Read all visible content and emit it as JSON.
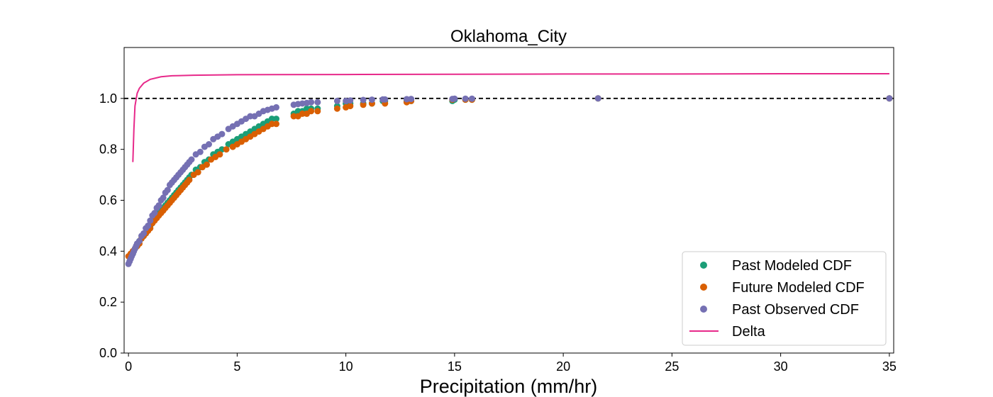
{
  "chart_data": {
    "type": "scatter",
    "title": "Oklahoma_City",
    "xlabel": "Precipitation (mm/hr)",
    "ylabel": "",
    "xlim": [
      -0.2,
      35.2
    ],
    "ylim": [
      0.0,
      1.2
    ],
    "x_ticks": [
      "0",
      "5",
      "10",
      "15",
      "20",
      "25",
      "30",
      "35"
    ],
    "y_ticks": [
      "0.0",
      "0.2",
      "0.4",
      "0.6",
      "0.8",
      "1.0"
    ],
    "grid": false,
    "legend_position": "lower-right",
    "reference_line": {
      "y": 1.0,
      "style": "dashed",
      "color": "#000000"
    },
    "series": [
      {
        "name": "Past Modeled CDF",
        "kind": "scatter",
        "color": "#1b9e77",
        "points": [
          [
            0.1,
            0.38
          ],
          [
            0.2,
            0.39
          ],
          [
            0.3,
            0.41
          ],
          [
            0.4,
            0.42
          ],
          [
            0.5,
            0.44
          ],
          [
            0.6,
            0.45
          ],
          [
            0.7,
            0.46
          ],
          [
            0.8,
            0.47
          ],
          [
            0.9,
            0.49
          ],
          [
            1.0,
            0.5
          ],
          [
            1.1,
            0.51
          ],
          [
            1.2,
            0.53
          ],
          [
            1.3,
            0.54
          ],
          [
            1.4,
            0.55
          ],
          [
            1.5,
            0.56
          ],
          [
            1.6,
            0.57
          ],
          [
            1.7,
            0.58
          ],
          [
            1.8,
            0.59
          ],
          [
            1.9,
            0.6
          ],
          [
            2.0,
            0.61
          ],
          [
            2.1,
            0.62
          ],
          [
            2.2,
            0.63
          ],
          [
            2.3,
            0.64
          ],
          [
            2.4,
            0.65
          ],
          [
            2.5,
            0.66
          ],
          [
            2.6,
            0.67
          ],
          [
            2.7,
            0.68
          ],
          [
            2.8,
            0.69
          ],
          [
            2.9,
            0.7
          ],
          [
            3.1,
            0.72
          ],
          [
            3.3,
            0.73
          ],
          [
            3.5,
            0.75
          ],
          [
            3.7,
            0.76
          ],
          [
            3.9,
            0.78
          ],
          [
            4.1,
            0.79
          ],
          [
            4.3,
            0.8
          ],
          [
            4.6,
            0.82
          ],
          [
            4.8,
            0.83
          ],
          [
            5.0,
            0.84
          ],
          [
            5.2,
            0.85
          ],
          [
            5.4,
            0.86
          ],
          [
            5.6,
            0.87
          ],
          [
            5.8,
            0.88
          ],
          [
            6.0,
            0.89
          ],
          [
            6.2,
            0.9
          ],
          [
            6.4,
            0.91
          ],
          [
            6.6,
            0.92
          ],
          [
            6.8,
            0.92
          ],
          [
            7.6,
            0.94
          ],
          [
            7.8,
            0.95
          ],
          [
            8.0,
            0.95
          ],
          [
            8.2,
            0.96
          ],
          [
            8.4,
            0.96
          ],
          [
            8.7,
            0.96
          ],
          [
            9.6,
            0.97
          ],
          [
            10.0,
            0.98
          ],
          [
            10.2,
            0.98
          ],
          [
            10.8,
            0.98
          ],
          [
            11.2,
            0.98
          ],
          [
            11.7,
            0.99
          ],
          [
            11.8,
            0.99
          ],
          [
            12.8,
            0.99
          ],
          [
            13.0,
            0.99
          ],
          [
            14.9,
            0.99
          ],
          [
            15.0,
            0.995
          ],
          [
            15.5,
            0.995
          ],
          [
            15.8,
            0.995
          ],
          [
            21.6,
            1.0
          ],
          [
            35.0,
            1.0
          ]
        ]
      },
      {
        "name": "Future Modeled CDF",
        "kind": "scatter",
        "color": "#d95f02",
        "points": [
          [
            0.0,
            0.38
          ],
          [
            0.1,
            0.39
          ],
          [
            0.2,
            0.4
          ],
          [
            0.3,
            0.41
          ],
          [
            0.4,
            0.42
          ],
          [
            0.5,
            0.43
          ],
          [
            0.6,
            0.45
          ],
          [
            0.7,
            0.46
          ],
          [
            0.8,
            0.47
          ],
          [
            0.9,
            0.48
          ],
          [
            1.0,
            0.49
          ],
          [
            1.1,
            0.51
          ],
          [
            1.2,
            0.52
          ],
          [
            1.3,
            0.53
          ],
          [
            1.4,
            0.54
          ],
          [
            1.5,
            0.55
          ],
          [
            1.6,
            0.56
          ],
          [
            1.7,
            0.57
          ],
          [
            1.8,
            0.58
          ],
          [
            1.9,
            0.59
          ],
          [
            2.0,
            0.6
          ],
          [
            2.1,
            0.61
          ],
          [
            2.2,
            0.62
          ],
          [
            2.3,
            0.63
          ],
          [
            2.4,
            0.64
          ],
          [
            2.5,
            0.65
          ],
          [
            2.6,
            0.66
          ],
          [
            2.7,
            0.67
          ],
          [
            2.8,
            0.68
          ],
          [
            3.0,
            0.7
          ],
          [
            3.2,
            0.71
          ],
          [
            3.4,
            0.73
          ],
          [
            3.6,
            0.74
          ],
          [
            3.8,
            0.76
          ],
          [
            4.0,
            0.77
          ],
          [
            4.2,
            0.78
          ],
          [
            4.5,
            0.8
          ],
          [
            4.8,
            0.81
          ],
          [
            5.0,
            0.82
          ],
          [
            5.2,
            0.83
          ],
          [
            5.4,
            0.84
          ],
          [
            5.6,
            0.85
          ],
          [
            5.8,
            0.86
          ],
          [
            6.0,
            0.87
          ],
          [
            6.2,
            0.88
          ],
          [
            6.4,
            0.89
          ],
          [
            6.6,
            0.9
          ],
          [
            6.8,
            0.9
          ],
          [
            7.6,
            0.93
          ],
          [
            7.8,
            0.93
          ],
          [
            8.0,
            0.94
          ],
          [
            8.2,
            0.94
          ],
          [
            8.4,
            0.95
          ],
          [
            8.7,
            0.95
          ],
          [
            9.6,
            0.96
          ],
          [
            10.0,
            0.965
          ],
          [
            10.2,
            0.97
          ],
          [
            10.8,
            0.975
          ],
          [
            11.2,
            0.98
          ],
          [
            11.8,
            0.98
          ],
          [
            12.8,
            0.985
          ],
          [
            13.0,
            0.99
          ],
          [
            14.9,
            0.995
          ],
          [
            15.5,
            0.995
          ],
          [
            15.8,
            0.995
          ],
          [
            21.6,
            1.0
          ],
          [
            35.0,
            1.0
          ]
        ]
      },
      {
        "name": "Past Observed CDF",
        "kind": "scatter",
        "color": "#7570b3",
        "points": [
          [
            0.0,
            0.35
          ],
          [
            0.05,
            0.36
          ],
          [
            0.1,
            0.37
          ],
          [
            0.15,
            0.38
          ],
          [
            0.2,
            0.39
          ],
          [
            0.25,
            0.4
          ],
          [
            0.3,
            0.41
          ],
          [
            0.35,
            0.42
          ],
          [
            0.4,
            0.43
          ],
          [
            0.5,
            0.44
          ],
          [
            0.6,
            0.46
          ],
          [
            0.7,
            0.47
          ],
          [
            0.8,
            0.49
          ],
          [
            0.9,
            0.5
          ],
          [
            1.0,
            0.52
          ],
          [
            1.1,
            0.54
          ],
          [
            1.2,
            0.55
          ],
          [
            1.3,
            0.57
          ],
          [
            1.4,
            0.58
          ],
          [
            1.5,
            0.6
          ],
          [
            1.6,
            0.61
          ],
          [
            1.7,
            0.63
          ],
          [
            1.8,
            0.64
          ],
          [
            1.9,
            0.66
          ],
          [
            2.0,
            0.67
          ],
          [
            2.1,
            0.68
          ],
          [
            2.2,
            0.69
          ],
          [
            2.3,
            0.7
          ],
          [
            2.4,
            0.71
          ],
          [
            2.5,
            0.72
          ],
          [
            2.6,
            0.73
          ],
          [
            2.7,
            0.74
          ],
          [
            2.8,
            0.75
          ],
          [
            2.9,
            0.76
          ],
          [
            3.1,
            0.78
          ],
          [
            3.3,
            0.79
          ],
          [
            3.5,
            0.81
          ],
          [
            3.7,
            0.82
          ],
          [
            3.9,
            0.84
          ],
          [
            4.1,
            0.85
          ],
          [
            4.3,
            0.86
          ],
          [
            4.6,
            0.88
          ],
          [
            4.8,
            0.89
          ],
          [
            5.0,
            0.9
          ],
          [
            5.2,
            0.91
          ],
          [
            5.4,
            0.92
          ],
          [
            5.6,
            0.93
          ],
          [
            5.8,
            0.93
          ],
          [
            6.0,
            0.94
          ],
          [
            6.2,
            0.95
          ],
          [
            6.4,
            0.955
          ],
          [
            6.6,
            0.96
          ],
          [
            6.8,
            0.965
          ],
          [
            7.6,
            0.975
          ],
          [
            7.8,
            0.978
          ],
          [
            8.0,
            0.98
          ],
          [
            8.2,
            0.982
          ],
          [
            8.4,
            0.985
          ],
          [
            8.7,
            0.985
          ],
          [
            9.6,
            0.99
          ],
          [
            10.0,
            0.99
          ],
          [
            10.2,
            0.992
          ],
          [
            10.8,
            0.994
          ],
          [
            11.2,
            0.995
          ],
          [
            11.7,
            0.996
          ],
          [
            11.8,
            0.996
          ],
          [
            12.8,
            0.997
          ],
          [
            13.0,
            0.998
          ],
          [
            14.9,
            0.998
          ],
          [
            15.0,
            0.999
          ],
          [
            15.5,
            0.999
          ],
          [
            15.8,
            0.999
          ],
          [
            21.6,
            1.0
          ],
          [
            35.0,
            1.0
          ]
        ]
      },
      {
        "name": "Delta",
        "kind": "line",
        "color": "#e7298a",
        "points": [
          [
            0.2,
            0.75
          ],
          [
            0.25,
            0.88
          ],
          [
            0.3,
            0.97
          ],
          [
            0.4,
            1.02
          ],
          [
            0.5,
            1.04
          ],
          [
            0.7,
            1.06
          ],
          [
            1.0,
            1.075
          ],
          [
            1.5,
            1.085
          ],
          [
            2.0,
            1.089
          ],
          [
            3.0,
            1.091
          ],
          [
            5.0,
            1.093
          ],
          [
            10.0,
            1.094
          ],
          [
            15.0,
            1.095
          ],
          [
            20.0,
            1.096
          ],
          [
            25.0,
            1.096
          ],
          [
            30.0,
            1.097
          ],
          [
            35.0,
            1.097
          ]
        ]
      }
    ]
  }
}
